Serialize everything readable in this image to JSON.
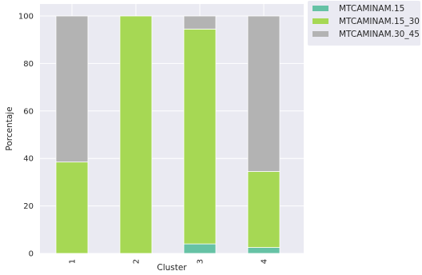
{
  "chart_data": {
    "type": "bar",
    "stacked": true,
    "categories": [
      "1",
      "2",
      "3",
      "4"
    ],
    "xlabel": "Cluster",
    "ylabel": "Porcentaje",
    "ylim": [
      0,
      100
    ],
    "yticks": [
      0,
      20,
      40,
      60,
      80,
      100
    ],
    "grid": true,
    "legend_position": "outside-top-right",
    "series": [
      {
        "name": "MTCAMINAM.15",
        "color": "#66c2a5",
        "values": [
          0,
          0,
          4,
          2.5
        ]
      },
      {
        "name": "MTCAMINAM.15_30",
        "color": "#a6d854",
        "values": [
          38.5,
          100,
          90.5,
          32
        ]
      },
      {
        "name": "MTCAMINAM.30_45",
        "color": "#b3b3b3",
        "values": [
          61.5,
          0,
          5.5,
          65.5
        ]
      }
    ]
  }
}
